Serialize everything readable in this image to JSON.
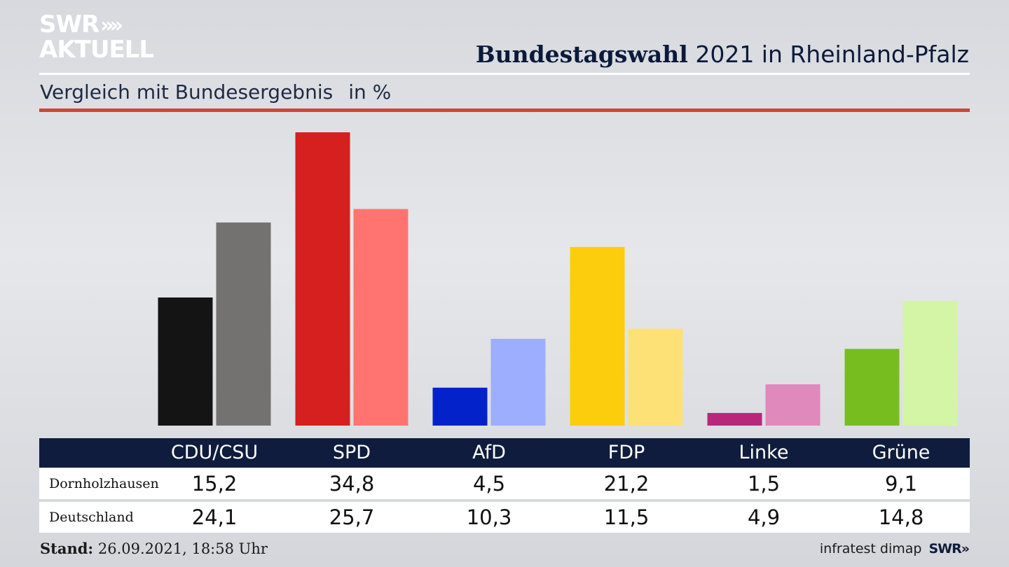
{
  "brand": {
    "line1": "SWR",
    "chevrons": "»",
    "line2": "AKTUELL"
  },
  "header": {
    "title_bold": "Bundestagswahl",
    "title_rest": "2021 in Rheinland-Pfalz"
  },
  "subheader": {
    "text": "Vergleich mit Bundesergebnis",
    "unit": "in %"
  },
  "colors": {
    "accent_line": "#d2443a",
    "table_header": "#0f1c3d"
  },
  "chart_data": {
    "type": "bar",
    "categories": [
      "CDU/CSU",
      "SPD",
      "AfD",
      "FDP",
      "Linke",
      "Grüne"
    ],
    "series": [
      {
        "name": "Dornholzhausen",
        "values": [
          15.2,
          34.8,
          4.5,
          21.2,
          1.5,
          9.1
        ],
        "colors": [
          "#141414",
          "#d61f1f",
          "#0322c9",
          "#fccd0d",
          "#b8287a",
          "#78bd20"
        ]
      },
      {
        "name": "Deutschland",
        "values": [
          24.1,
          25.7,
          10.3,
          11.5,
          4.9,
          14.8
        ],
        "colors": [
          "#737270",
          "#ff7471",
          "#9eaefe",
          "#fde176",
          "#df89bc",
          "#d4f5a5"
        ]
      }
    ],
    "ylim": [
      0,
      36
    ]
  },
  "footer": {
    "stand_label": "Stand:",
    "stand_value": "26.09.2021, 18:58 Uhr"
  },
  "source": {
    "institute": "infratest dimap",
    "logo": "SWR»"
  }
}
